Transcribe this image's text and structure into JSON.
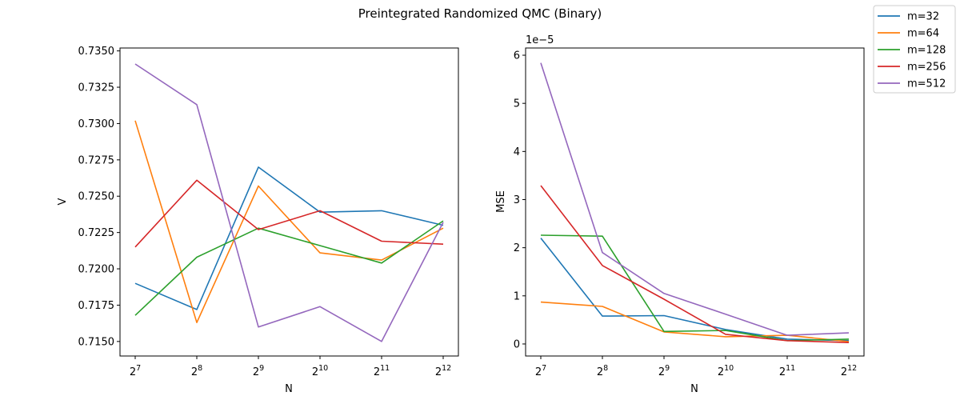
{
  "figure": {
    "suptitle": "Preintegrated Randomized QMC (Binary)"
  },
  "legend": {
    "placement": "top-right (outside axes)",
    "entries": [
      {
        "name": "m=32",
        "color": "#1f77b4"
      },
      {
        "name": "m=64",
        "color": "#ff7f0e"
      },
      {
        "name": "m=128",
        "color": "#2ca02c"
      },
      {
        "name": "m=256",
        "color": "#d62728"
      },
      {
        "name": "m=512",
        "color": "#9467bd"
      }
    ]
  },
  "chart_data": [
    {
      "type": "line",
      "xlabel": "N",
      "ylabel": "V",
      "x": [
        "2^7",
        "2^8",
        "2^9",
        "2^10",
        "2^11",
        "2^12"
      ],
      "x_tick_bases": [
        "2",
        "2",
        "2",
        "2",
        "2",
        "2"
      ],
      "x_tick_exps": [
        "7",
        "8",
        "9",
        "10",
        "11",
        "12"
      ],
      "ylim": [
        0.714,
        0.7352
      ],
      "y_ticks": [
        "0.7150",
        "0.7175",
        "0.7200",
        "0.7225",
        "0.7250",
        "0.7275",
        "0.7300",
        "0.7325",
        "0.7350"
      ],
      "y_tick_values": [
        0.715,
        0.7175,
        0.72,
        0.7225,
        0.725,
        0.7275,
        0.73,
        0.7325,
        0.735
      ],
      "grid": false,
      "series": [
        {
          "name": "m=32",
          "color": "#1f77b4",
          "values": [
            0.719,
            0.7172,
            0.727,
            0.7239,
            0.724,
            0.723
          ]
        },
        {
          "name": "m=64",
          "color": "#ff7f0e",
          "values": [
            0.7302,
            0.7163,
            0.7257,
            0.7211,
            0.7206,
            0.7228
          ]
        },
        {
          "name": "m=128",
          "color": "#2ca02c",
          "values": [
            0.7168,
            0.7208,
            0.7228,
            0.7216,
            0.7204,
            0.7233
          ]
        },
        {
          "name": "m=256",
          "color": "#d62728",
          "values": [
            0.7215,
            0.7261,
            0.7227,
            0.724,
            0.7219,
            0.7217
          ]
        },
        {
          "name": "m=512",
          "color": "#9467bd",
          "values": [
            0.7341,
            0.7313,
            0.716,
            0.7174,
            0.715,
            0.7232
          ]
        }
      ]
    },
    {
      "type": "line",
      "xlabel": "N",
      "ylabel": "MSE",
      "y_scale_note": "1e−5",
      "x": [
        "2^7",
        "2^8",
        "2^9",
        "2^10",
        "2^11",
        "2^12"
      ],
      "x_tick_bases": [
        "2",
        "2",
        "2",
        "2",
        "2",
        "2"
      ],
      "x_tick_exps": [
        "7",
        "8",
        "9",
        "10",
        "11",
        "12"
      ],
      "ylim": [
        -0.25,
        6.15
      ],
      "y_ticks": [
        "0",
        "1",
        "2",
        "3",
        "4",
        "5",
        "6"
      ],
      "y_tick_values": [
        0,
        1,
        2,
        3,
        4,
        5,
        6
      ],
      "grid": false,
      "series": [
        {
          "name": "m=32",
          "color": "#1f77b4",
          "values": [
            2.2,
            0.58,
            0.59,
            0.3,
            0.1,
            0.07
          ]
        },
        {
          "name": "m=64",
          "color": "#ff7f0e",
          "values": [
            0.87,
            0.78,
            0.25,
            0.15,
            0.18,
            0.05
          ]
        },
        {
          "name": "m=128",
          "color": "#2ca02c",
          "values": [
            2.26,
            2.24,
            0.26,
            0.28,
            0.07,
            0.1
          ]
        },
        {
          "name": "m=256",
          "color": "#d62728",
          "values": [
            3.29,
            1.63,
            0.93,
            0.2,
            0.07,
            0.03
          ]
        },
        {
          "name": "m=512",
          "color": "#9467bd",
          "values": [
            5.84,
            1.9,
            1.05,
            0.62,
            0.18,
            0.23
          ]
        }
      ]
    }
  ]
}
